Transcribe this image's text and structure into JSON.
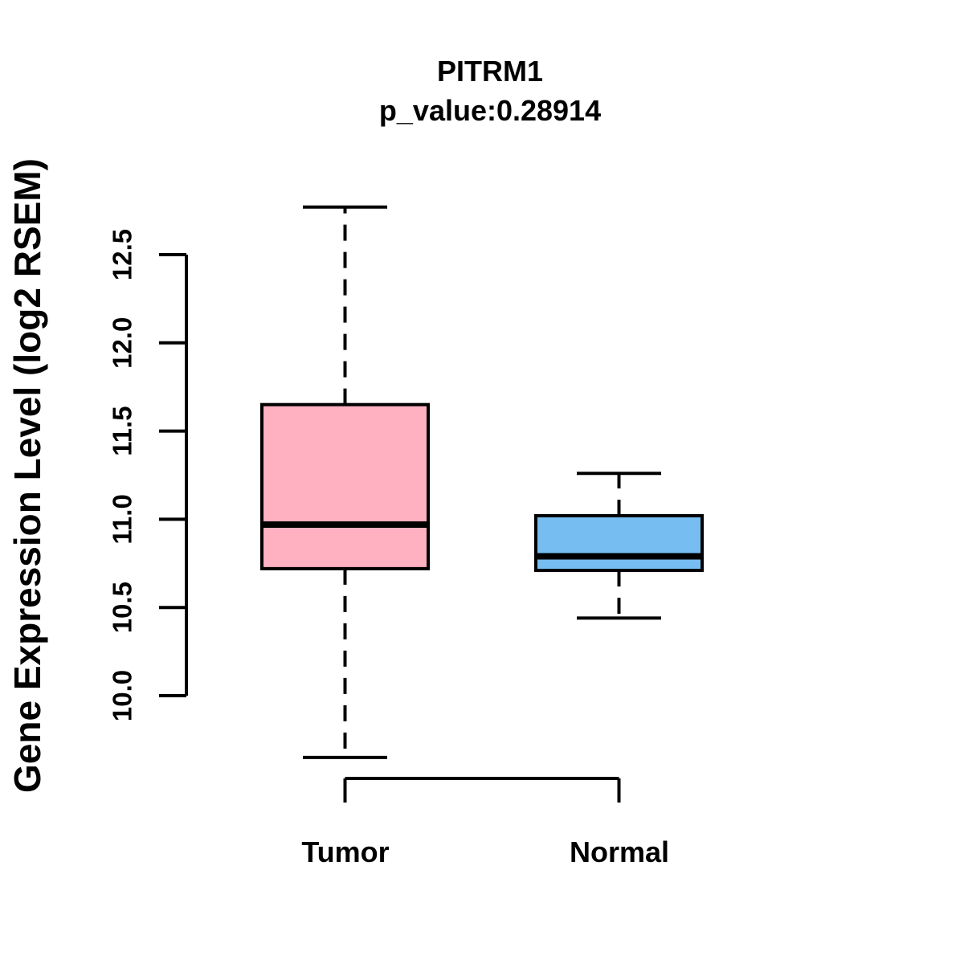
{
  "chart_data": {
    "type": "boxplot",
    "title": "PITRM1",
    "subtitle": "p_value:0.28914",
    "p_value": 0.28914,
    "ylabel": "Gene Expression Level (log2 RSEM)",
    "categories": [
      "Tumor",
      "Normal"
    ],
    "series": [
      {
        "name": "Tumor",
        "fill": "#FFB0C1",
        "whisker_low": 9.65,
        "q1": 10.72,
        "median": 10.97,
        "q3": 11.65,
        "whisker_high": 12.77
      },
      {
        "name": "Normal",
        "fill": "#76BEF2",
        "whisker_low": 10.44,
        "q1": 10.71,
        "median": 10.79,
        "q3": 11.02,
        "whisker_high": 11.26
      }
    ],
    "y_axis": {
      "axis_range": [
        10.0,
        12.5
      ],
      "ticks": [
        {
          "value": 10.0,
          "label": "10.0"
        },
        {
          "value": 10.5,
          "label": "10.5"
        },
        {
          "value": 11.0,
          "label": "11.0"
        },
        {
          "value": 11.5,
          "label": "11.5"
        },
        {
          "value": 12.0,
          "label": "12.0"
        },
        {
          "value": 12.5,
          "label": "12.5"
        }
      ]
    },
    "grid": false,
    "legend": false,
    "styles": {
      "stroke_color": "#000000",
      "median_color": "#000000",
      "background": "#FFFFFF",
      "whisker_style": "dashed"
    }
  }
}
